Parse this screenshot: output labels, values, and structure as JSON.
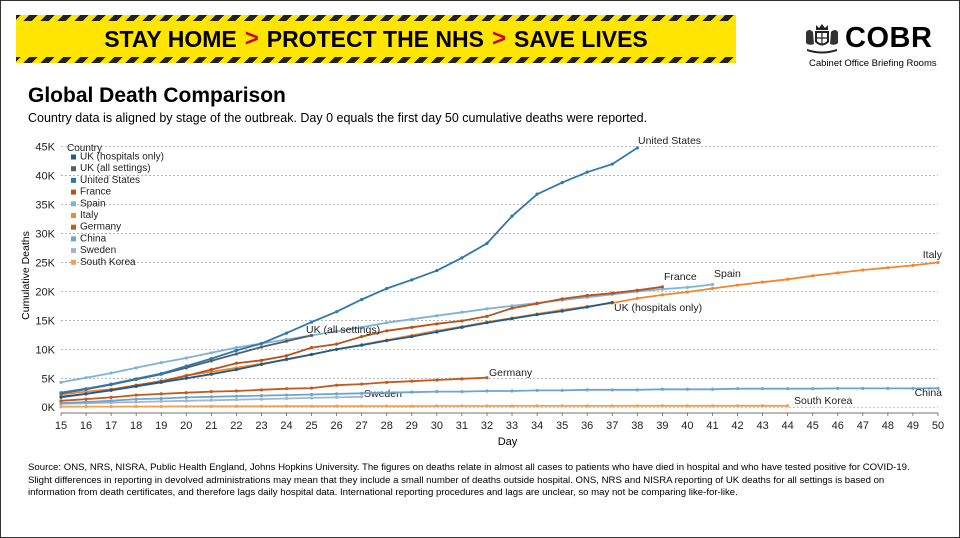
{
  "banner": {
    "part1": "STAY HOME",
    "part2": "PROTECT THE NHS",
    "part3": "SAVE LIVES",
    "separator": ">"
  },
  "logo": {
    "name": "COBR",
    "subtitle": "Cabinet Office Briefing Rooms"
  },
  "title": "Global Death Comparison",
  "subtitle": "Country data is aligned by stage of the outbreak. Day 0 equals the first day 50 cumulative deaths were reported.",
  "footer": "Source: ONS, NRS, NISRA, Public Health England, Johns Hopkins University. The figures on deaths relate in almost all cases to patients who have died in hospital and who have tested positive for COVID-19. Slight differences in reporting in devolved administrations may mean that they include a small number of deaths outside hospital. ONS, NRS and NISRA reporting of UK deaths for all settings is based on information from death certificates, and therefore lags daily hospital data. International reporting procedures and lags are unclear, so may not be comparing like-for-like.",
  "chart_data": {
    "type": "line",
    "xlabel": "Day",
    "ylabel": "Cumulative Deaths",
    "legend_title": "Country",
    "xlim": [
      15,
      50
    ],
    "ylim": [
      -1000,
      46500
    ],
    "xticks": [
      15,
      16,
      17,
      18,
      19,
      20,
      21,
      22,
      23,
      24,
      25,
      26,
      27,
      28,
      29,
      30,
      31,
      32,
      33,
      34,
      35,
      36,
      37,
      38,
      39,
      40,
      41,
      42,
      43,
      44,
      45,
      46,
      47,
      48,
      49,
      50
    ],
    "yticks": [
      0,
      5000,
      10000,
      15000,
      20000,
      25000,
      30000,
      35000,
      40000,
      45000
    ],
    "ytick_labels": [
      "0K",
      "5K",
      "10K",
      "15K",
      "20K",
      "25K",
      "30K",
      "35K",
      "40K",
      "45K"
    ],
    "series": [
      {
        "name": "UK (hospitals only)",
        "color": "#1f5b8e",
        "end_label": "UK (hospitals only)",
        "x": [
          15,
          16,
          17,
          18,
          19,
          20,
          21,
          22,
          23,
          24,
          25,
          26,
          27,
          28,
          29,
          30,
          31,
          32,
          33,
          34,
          35,
          36,
          37
        ],
        "values": [
          1800,
          2300,
          2900,
          3600,
          4300,
          5000,
          5700,
          6500,
          7400,
          8300,
          9100,
          10000,
          10700,
          11500,
          12200,
          13000,
          13800,
          14600,
          15300,
          16000,
          16600,
          17300,
          18100
        ]
      },
      {
        "name": "UK (all settings)",
        "color": "#555e6b",
        "end_label": "UK (all settings)",
        "x": [
          15,
          16,
          17,
          18,
          19,
          20,
          21,
          22,
          23,
          24,
          25
        ],
        "values": [
          2400,
          3100,
          3900,
          4800,
          5700,
          6800,
          8000,
          9200,
          10400,
          11400,
          12400
        ]
      },
      {
        "name": "United States",
        "color": "#2e78ad",
        "end_label": "United States",
        "x": [
          15,
          16,
          17,
          18,
          19,
          20,
          21,
          22,
          23,
          24,
          25,
          26,
          27,
          28,
          29,
          30,
          31,
          32,
          33,
          34,
          35,
          36,
          37,
          38
        ],
        "values": [
          2500,
          3200,
          4000,
          4900,
          5800,
          7100,
          8400,
          9800,
          11000,
          12800,
          14700,
          16500,
          18600,
          20500,
          22000,
          23600,
          25800,
          28300,
          33000,
          36800,
          38800,
          40600,
          42000,
          44800
        ]
      },
      {
        "name": "France",
        "color": "#b8531b",
        "end_label": "France",
        "x": [
          15,
          16,
          17,
          18,
          19,
          20,
          21,
          22,
          23,
          24,
          25,
          26,
          27,
          28,
          29,
          30,
          31,
          32,
          33,
          34,
          35,
          36,
          37,
          38,
          39
        ],
        "values": [
          1700,
          2300,
          3000,
          3800,
          4500,
          5400,
          6500,
          7600,
          8100,
          8900,
          10300,
          10900,
          12200,
          13200,
          13800,
          14400,
          14900,
          15700,
          17100,
          17900,
          18700,
          19300,
          19700,
          20200,
          20800
        ]
      },
      {
        "name": "Spain",
        "color": "#7fb3d5",
        "end_label": "Spain",
        "x": [
          15,
          16,
          17,
          18,
          19,
          20,
          21,
          22,
          23,
          24,
          25,
          26,
          27,
          28,
          29,
          30,
          31,
          32,
          33,
          34,
          35,
          36,
          37,
          38,
          39,
          40,
          41
        ],
        "values": [
          4300,
          5100,
          5900,
          6800,
          7700,
          8500,
          9400,
          10300,
          11000,
          11700,
          12400,
          13100,
          13800,
          14600,
          15200,
          15800,
          16400,
          17000,
          17500,
          18000,
          18500,
          19000,
          19500,
          20000,
          20400,
          20700,
          21200
        ]
      },
      {
        "name": "Italy",
        "color": "#f0882d",
        "end_label": "Italy",
        "x": [
          15,
          16,
          17,
          18,
          19,
          20,
          21,
          22,
          23,
          24,
          25,
          26,
          27,
          28,
          29,
          30,
          31,
          32,
          33,
          34,
          35,
          36,
          37,
          38,
          39,
          40,
          41,
          42,
          43,
          44,
          45,
          46,
          47,
          48,
          49,
          50
        ],
        "values": [
          2200,
          2700,
          3100,
          3700,
          4500,
          5500,
          6100,
          6800,
          7500,
          8200,
          9100,
          10000,
          10800,
          11600,
          12400,
          13200,
          13900,
          14700,
          15400,
          16100,
          16800,
          17400,
          18000,
          18800,
          19400,
          19900,
          20500,
          21100,
          21600,
          22100,
          22700,
          23200,
          23700,
          24100,
          24500,
          25000
        ]
      },
      {
        "name": "Germany",
        "color": "#c25b1c",
        "end_label": "Germany",
        "x": [
          15,
          16,
          17,
          18,
          19,
          20,
          21,
          22,
          23,
          24,
          25,
          26,
          27,
          28,
          29,
          30,
          31,
          32
        ],
        "values": [
          1100,
          1400,
          1700,
          2100,
          2300,
          2500,
          2700,
          2800,
          3000,
          3200,
          3300,
          3800,
          4000,
          4300,
          4500,
          4700,
          4900,
          5100
        ]
      },
      {
        "name": "China",
        "color": "#6aa6d2",
        "end_label": "China",
        "x": [
          15,
          16,
          17,
          18,
          19,
          20,
          21,
          22,
          23,
          24,
          25,
          26,
          27,
          28,
          29,
          30,
          31,
          32,
          33,
          34,
          35,
          36,
          37,
          38,
          39,
          40,
          41,
          42,
          43,
          44,
          45,
          46,
          47,
          48,
          49,
          50
        ],
        "values": [
          700,
          900,
          1100,
          1400,
          1500,
          1700,
          1800,
          1900,
          2000,
          2100,
          2200,
          2300,
          2400,
          2500,
          2600,
          2700,
          2700,
          2800,
          2800,
          2900,
          2900,
          3000,
          3000,
          3000,
          3100,
          3100,
          3100,
          3200,
          3200,
          3200,
          3200,
          3250,
          3250,
          3250,
          3250,
          3260
        ]
      },
      {
        "name": "Sweden",
        "color": "#a3b5cc",
        "end_label": "Sweden",
        "x": [
          15,
          16,
          17,
          18,
          19,
          20,
          21,
          22,
          23,
          24,
          25,
          26,
          27
        ],
        "values": [
          600,
          700,
          800,
          900,
          1000,
          1100,
          1200,
          1300,
          1400,
          1500,
          1600,
          1700,
          1800
        ]
      },
      {
        "name": "South Korea",
        "color": "#f4a050",
        "end_label": "South Korea",
        "x": [
          15,
          16,
          17,
          18,
          19,
          20,
          21,
          22,
          23,
          24,
          25,
          26,
          27,
          28,
          29,
          30,
          31,
          32,
          33,
          34,
          35,
          36,
          37,
          38,
          39,
          40,
          41,
          42,
          43,
          44
        ],
        "values": [
          90,
          100,
          110,
          120,
          130,
          140,
          150,
          160,
          165,
          170,
          180,
          185,
          190,
          195,
          200,
          205,
          210,
          215,
          220,
          225,
          230,
          232,
          234,
          236,
          238,
          240,
          242,
          244,
          246,
          248
        ]
      }
    ]
  }
}
